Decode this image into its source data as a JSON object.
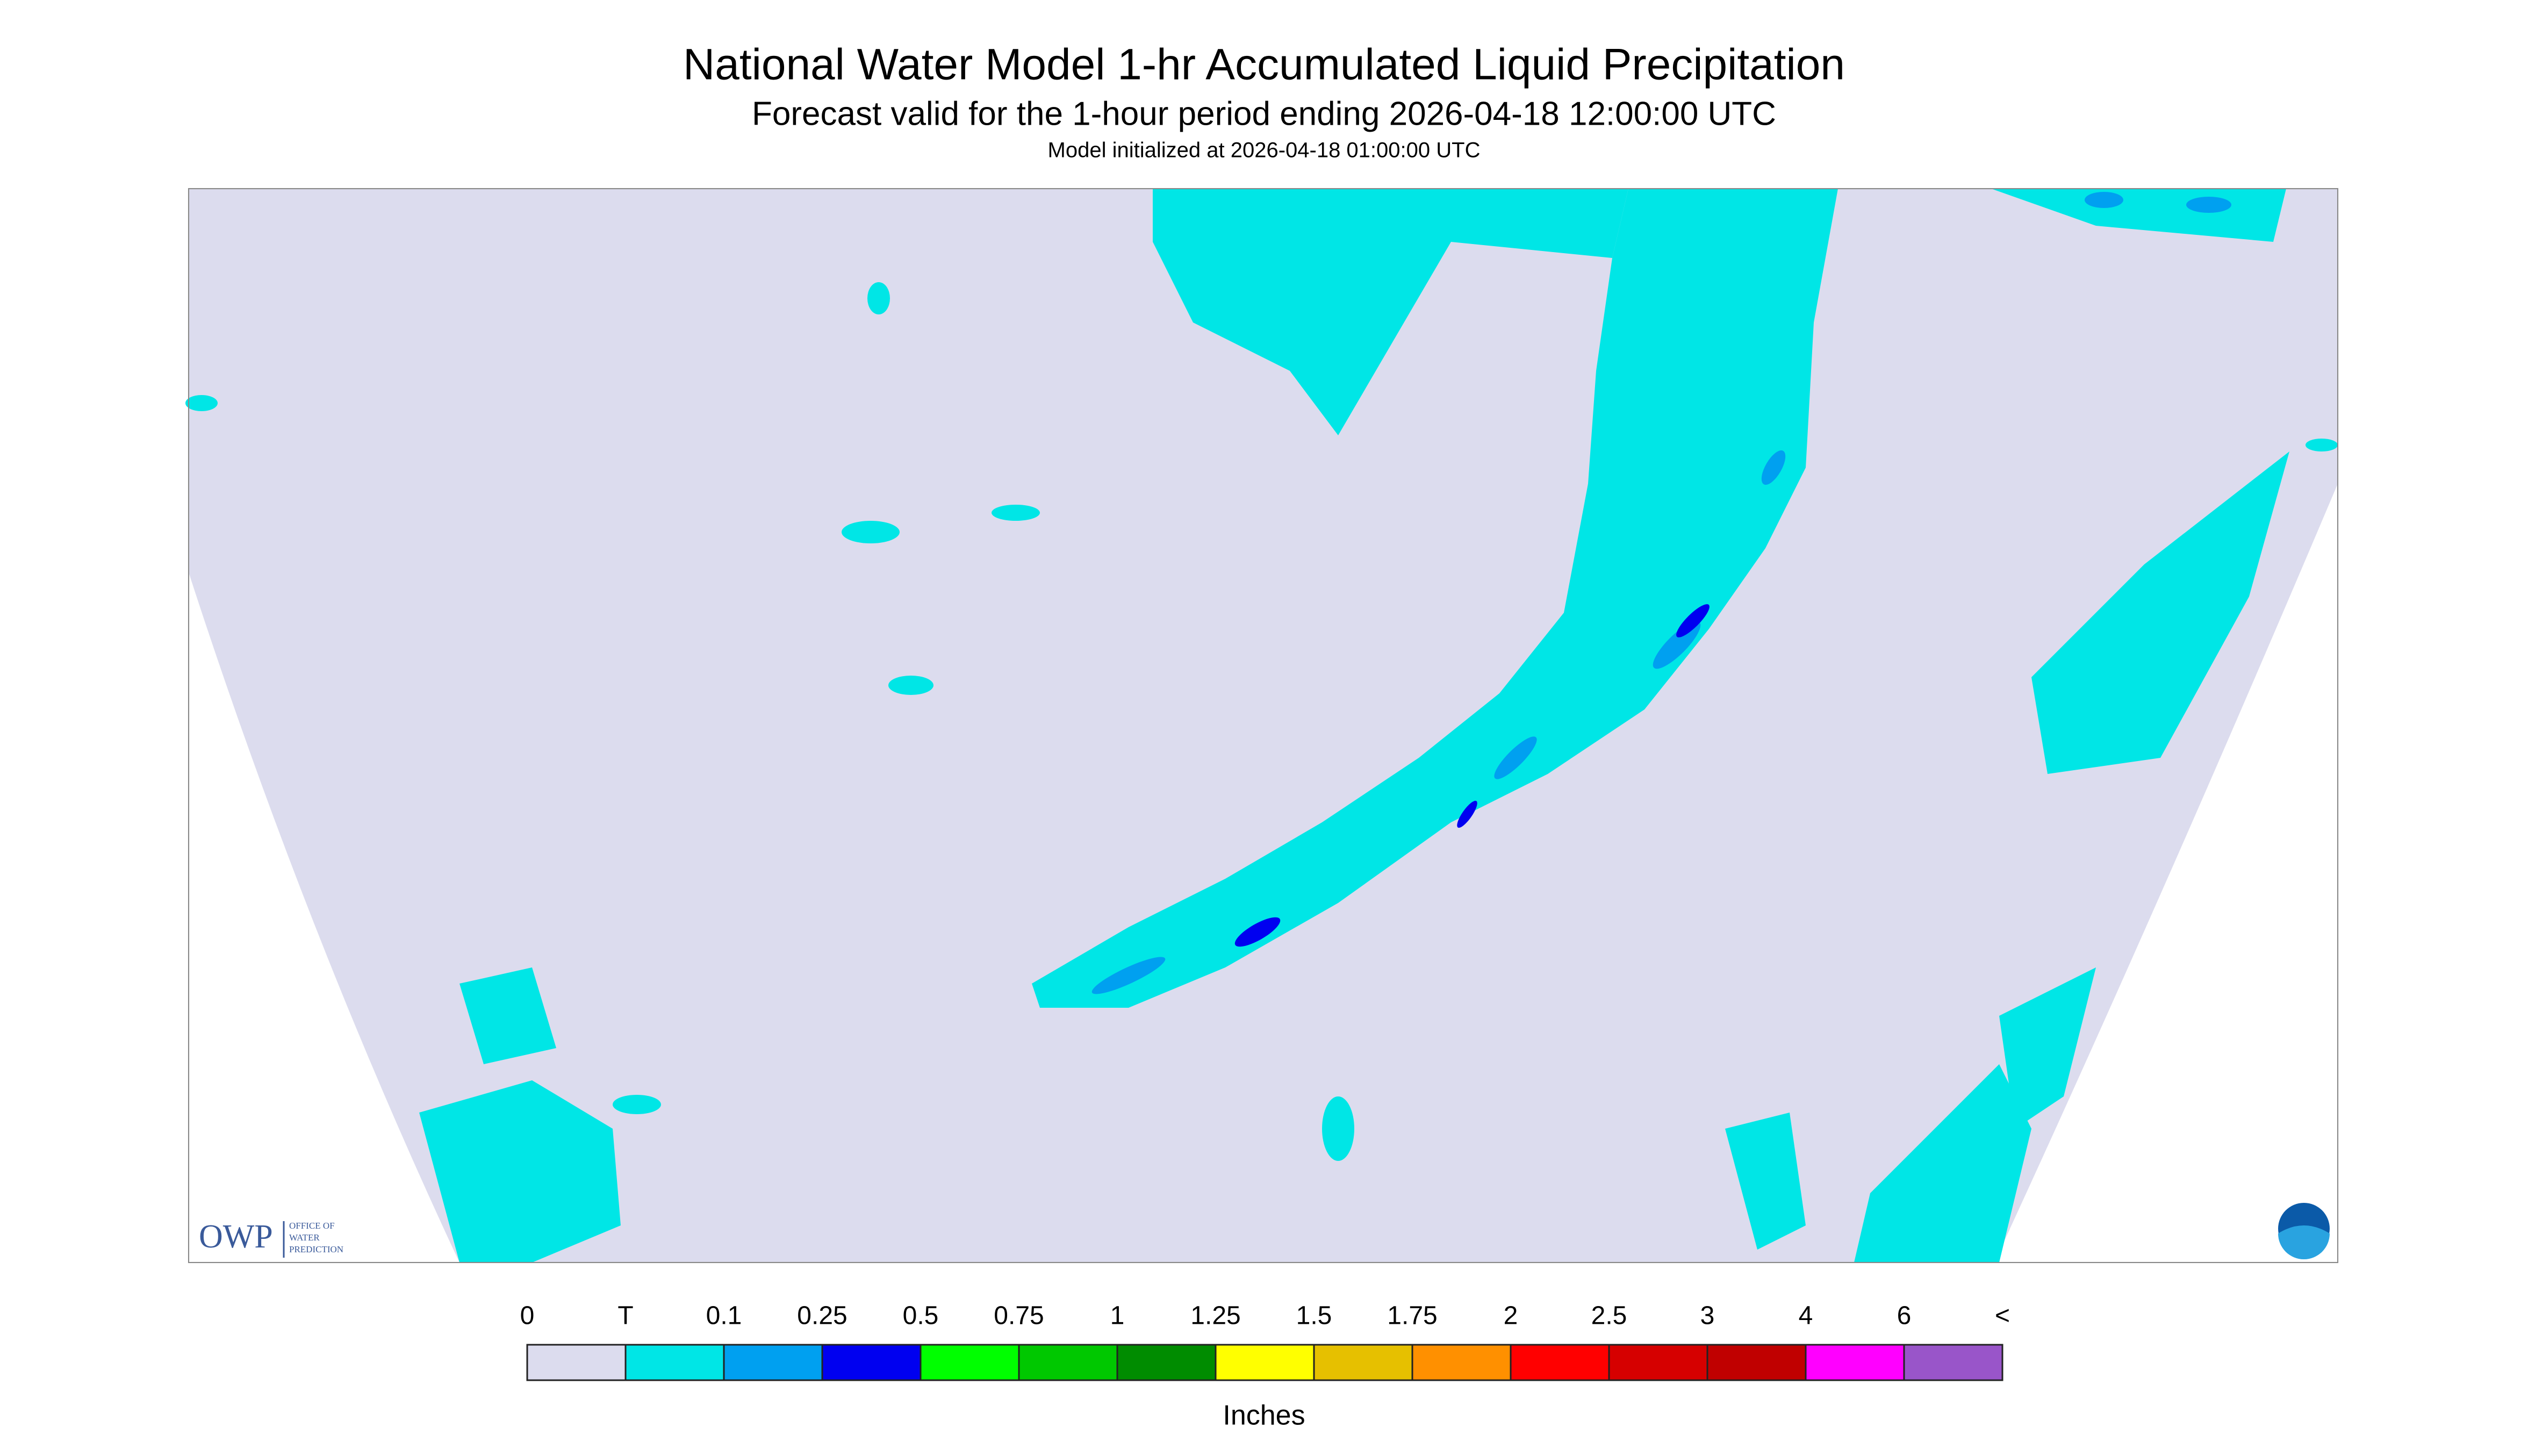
{
  "header": {
    "title": "National Water Model 1-hr Accumulated Liquid Precipitation",
    "subtitle": "Forecast valid for the 1-hour period ending 2026-04-18 12:00:00 UTC",
    "initialized": "Model initialized at 2026-04-18 01:00:00 UTC"
  },
  "legend": {
    "labels": [
      "0",
      "T",
      "0.1",
      "0.25",
      "0.5",
      "0.75",
      "1",
      "1.25",
      "1.5",
      "1.75",
      "2",
      "2.5",
      "3",
      "4",
      "6",
      "<"
    ],
    "colors": [
      "#dcdcee",
      "#00e6e6",
      "#00a0f0",
      "#0000f0",
      "#00ff00",
      "#00c800",
      "#008c00",
      "#ffff00",
      "#e6c000",
      "#ff9000",
      "#ff0000",
      "#d60000",
      "#c00000",
      "#ff00ff",
      "#9955c9"
    ],
    "unit": "Inches"
  },
  "logo": {
    "abbr": "OWP",
    "lines": [
      "OFFICE OF",
      "WATER",
      "PREDICTION"
    ]
  }
}
